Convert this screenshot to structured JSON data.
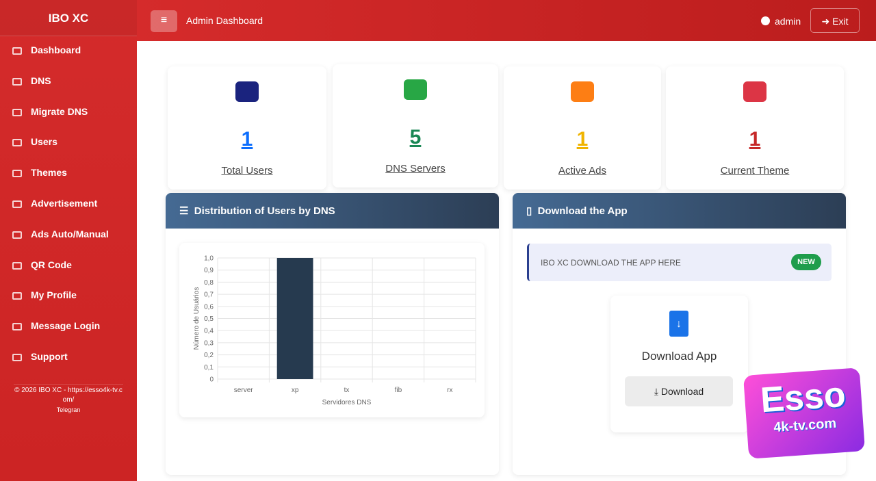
{
  "sidebar": {
    "brand": "IBO XC",
    "menu": [
      "Dashboard",
      "DNS",
      "Migrate DNS",
      "Users",
      "Themes",
      "Advertisement",
      "Ads Auto/Manual",
      "QR Code",
      "My Profile",
      "Message Login",
      "Support"
    ],
    "footer": "© 2026 IBO XC - https://esso4k-tv.com/",
    "telegram": "Telegran"
  },
  "header": {
    "title": "Admin Dashboard",
    "user": "admin",
    "exit": "Exit"
  },
  "stats": [
    {
      "value": 1,
      "label": "Total Users"
    },
    {
      "value": 5,
      "label": "DNS Servers"
    },
    {
      "value": 1,
      "label": "Active Ads"
    },
    {
      "value": 1,
      "label": "Current Theme"
    }
  ],
  "chart_panel": {
    "title": "Distribution of Users by DNS"
  },
  "chart_data": {
    "type": "bar",
    "categories": [
      "server",
      "xp",
      "tx",
      "fib",
      "rx"
    ],
    "values": [
      0,
      1,
      0,
      0,
      0
    ],
    "color": "#263a4f",
    "x_label": "Servidores DNS",
    "y_label": "Número de Usuários",
    "ylim": [
      0,
      1
    ],
    "yticks": [
      0,
      {
        "value": 0.1,
        "label": "0,1"
      },
      {
        "value": 0.2,
        "label": "0,2"
      },
      {
        "value": 0.3,
        "label": "0,3"
      },
      {
        "value": 0.4,
        "label": "0,4"
      },
      {
        "value": 0.5,
        "label": "0,5"
      },
      {
        "value": 0.6,
        "label": "0,6"
      },
      {
        "value": 0.7,
        "label": "0,7"
      },
      {
        "value": 0.8,
        "label": "0,8"
      },
      {
        "value": 0.9,
        "label": "0,9"
      },
      {
        "value": 1,
        "label": "1,0"
      }
    ],
    "grid": true
  },
  "download": {
    "title": "Download the App",
    "banner": "IBO XC DOWNLOAD THE APP HERE",
    "badge": "NEW",
    "card_title": "Download App",
    "button": "Download"
  },
  "watermark": {
    "line1": "Esso",
    "line2": "4k-tv.com"
  }
}
